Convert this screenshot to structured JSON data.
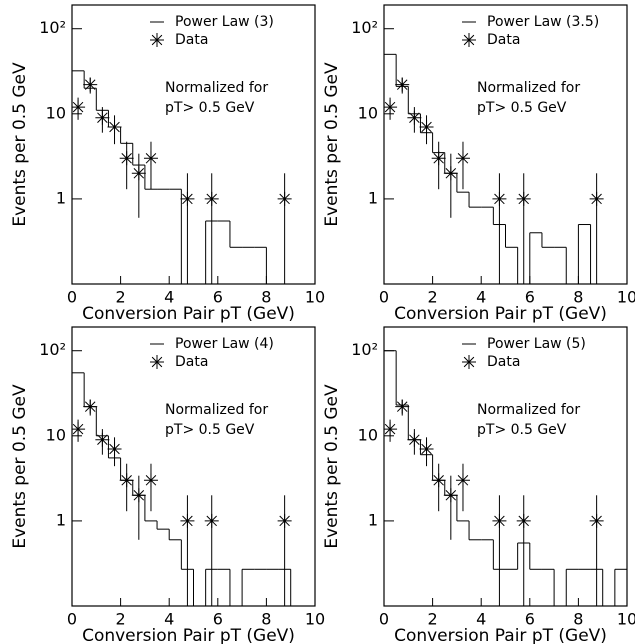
{
  "chart_data": [
    {
      "type": "histogram",
      "x_label": "Conversion Pair pT (GeV)",
      "y_label": "Events per 0.5 GeV",
      "annotations": [
        "Normalized for",
        "pT> 0.5 GeV"
      ],
      "log_y": true,
      "color": "#000000",
      "xlim": [
        0,
        10
      ],
      "ylim": [
        0.1,
        190
      ],
      "xticks": [
        0,
        2,
        4,
        6,
        8,
        10
      ],
      "yticks": [
        1,
        10,
        {
          "value": 100,
          "label": "10²"
        }
      ],
      "bins": [
        0,
        0.5,
        1,
        1.5,
        2,
        2.5,
        3,
        3.5,
        4,
        4.5,
        5,
        5.5,
        6,
        6.5,
        7,
        7.5,
        8,
        8.5,
        9,
        9.5,
        10
      ],
      "series": [
        {
          "name": "Power Law (3)",
          "values": [
            32,
            20,
            11,
            7,
            4.5,
            2.5,
            1.3,
            1.3,
            1.3,
            null,
            null,
            0.55,
            0.55,
            0.27,
            0.27,
            0.27,
            null,
            null,
            null,
            null
          ]
        },
        {
          "name": "Data",
          "x": [
            0.25,
            0.75,
            1.25,
            1.75,
            2.25,
            2.75,
            3.25,
            4.75,
            5.75,
            8.75
          ],
          "values": [
            12,
            22,
            9,
            7,
            3,
            2,
            3,
            1,
            1,
            1
          ],
          "errors": [
            3.5,
            4.7,
            3,
            2.6,
            1.7,
            1.4,
            1.7,
            1,
            1,
            1
          ]
        }
      ]
    },
    {
      "type": "histogram",
      "x_label": "Conversion Pair pT (GeV)",
      "y_label": "Events per 0.5 GeV",
      "annotations": [
        "Normalized for",
        "pT> 0.5 GeV"
      ],
      "log_y": true,
      "color": "#000000",
      "xlim": [
        0,
        10
      ],
      "ylim": [
        0.1,
        190
      ],
      "xticks": [
        0,
        2,
        4,
        6,
        8,
        10
      ],
      "yticks": [
        1,
        10,
        {
          "value": 100,
          "label": "10²"
        }
      ],
      "bins": [
        0,
        0.5,
        1,
        1.5,
        2,
        2.5,
        3,
        3.5,
        4,
        4.5,
        5,
        5.5,
        6,
        6.5,
        7,
        7.5,
        8,
        8.5,
        9,
        9.5,
        10
      ],
      "series": [
        {
          "name": "Power Law (3.5)",
          "values": [
            50,
            21,
            10,
            6,
            3.5,
            2,
            1.2,
            0.8,
            0.8,
            0.5,
            0.27,
            null,
            0.4,
            0.27,
            0.27,
            null,
            0.5,
            null,
            null,
            null
          ]
        },
        {
          "name": "Data",
          "x": [
            0.25,
            0.75,
            1.25,
            1.75,
            2.25,
            2.75,
            3.25,
            4.75,
            5.75,
            8.75
          ],
          "values": [
            12,
            22,
            9,
            7,
            3,
            2,
            3,
            1,
            1,
            1
          ],
          "errors": [
            3.5,
            4.7,
            3,
            2.6,
            1.7,
            1.4,
            1.7,
            1,
            1,
            1
          ]
        }
      ]
    },
    {
      "type": "histogram",
      "x_label": "Conversion Pair pT (GeV)",
      "y_label": "Events per 0.5 GeV",
      "annotations": [
        "Normalized for",
        "pT> 0.5 GeV"
      ],
      "log_y": true,
      "color": "#000000",
      "xlim": [
        0,
        10
      ],
      "ylim": [
        0.1,
        190
      ],
      "xticks": [
        0,
        2,
        4,
        6,
        8,
        10
      ],
      "yticks": [
        1,
        10,
        {
          "value": 100,
          "label": "10²"
        }
      ],
      "bins": [
        0,
        0.5,
        1,
        1.5,
        2,
        2.5,
        3,
        3.5,
        4,
        4.5,
        5,
        5.5,
        6,
        6.5,
        7,
        7.5,
        8,
        8.5,
        9,
        9.5,
        10
      ],
      "series": [
        {
          "name": "Power Law (4)",
          "values": [
            55,
            22,
            10,
            5.5,
            3,
            2,
            1,
            0.8,
            0.6,
            0.27,
            null,
            0.27,
            0.27,
            null,
            0.27,
            0.27,
            0.27,
            0.27,
            null,
            null
          ]
        },
        {
          "name": "Data",
          "x": [
            0.25,
            0.75,
            1.25,
            1.75,
            2.25,
            2.75,
            3.25,
            4.75,
            5.75,
            8.75
          ],
          "values": [
            12,
            22,
            9,
            7,
            3,
            2,
            3,
            1,
            1,
            1
          ],
          "errors": [
            3.5,
            4.7,
            3,
            2.6,
            1.7,
            1.4,
            1.7,
            1,
            1,
            1
          ]
        }
      ]
    },
    {
      "type": "histogram",
      "x_label": "Conversion Pair pT (GeV)",
      "y_label": "Events per 0.5 GeV",
      "annotations": [
        "Normalized for",
        "pT> 0.5 GeV"
      ],
      "log_y": true,
      "color": "#000000",
      "xlim": [
        0,
        10
      ],
      "ylim": [
        0.1,
        190
      ],
      "xticks": [
        0,
        2,
        4,
        6,
        8,
        10
      ],
      "yticks": [
        1,
        10,
        {
          "value": 100,
          "label": "10²"
        }
      ],
      "bins": [
        0,
        0.5,
        1,
        1.5,
        2,
        2.5,
        3,
        3.5,
        4,
        4.5,
        5,
        5.5,
        6,
        6.5,
        7,
        7.5,
        8,
        8.5,
        9,
        9.5,
        10
      ],
      "series": [
        {
          "name": "Power Law (5)",
          "values": [
            100,
            23,
            9,
            6,
            3,
            2,
            1,
            0.6,
            0.6,
            0.27,
            0.27,
            0.55,
            0.27,
            0.27,
            null,
            0.27,
            0.27,
            0.27,
            null,
            0.27
          ]
        },
        {
          "name": "Data",
          "x": [
            0.25,
            0.75,
            1.25,
            1.75,
            2.25,
            2.75,
            3.25,
            4.75,
            5.75,
            8.75
          ],
          "values": [
            12,
            22,
            9,
            7,
            3,
            2,
            3,
            1,
            1,
            1
          ],
          "errors": [
            3.5,
            4.7,
            3,
            2.6,
            1.7,
            1.4,
            1.7,
            1,
            1,
            1
          ]
        }
      ]
    }
  ]
}
